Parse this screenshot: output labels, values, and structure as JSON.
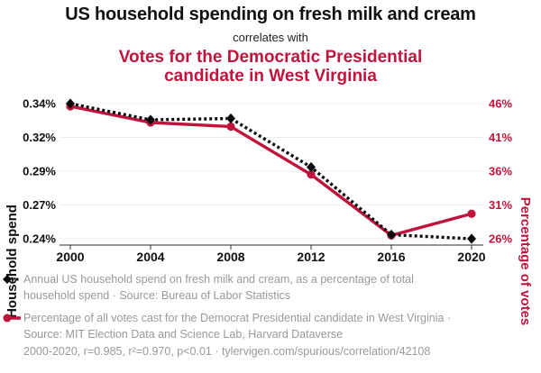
{
  "header": {
    "title": "US household spending on fresh milk and cream",
    "connector": "correlates with",
    "subtitle": "Votes for the Democratic Presidential candidate in West Virginia"
  },
  "colors": {
    "accent_red": "#c0143c",
    "series_black": "#0b0b0b",
    "legend_gray": "#999999",
    "gridline": "#ececec",
    "axis_line": "#2b2b2b"
  },
  "chart_data": {
    "type": "line",
    "title": "US household spending on fresh milk and cream correlates with Votes for the Democratic Presidential candidate in West Virginia",
    "x": [
      2000,
      2004,
      2008,
      2012,
      2016,
      2020
    ],
    "x_tick_labels": [
      "2000",
      "2004",
      "2008",
      "2012",
      "2016",
      "2020"
    ],
    "series": [
      {
        "id": "milk-spend",
        "name": "Annual US household spend on fresh milk and cream, as a percentage of total household spend",
        "axis": "left",
        "values": [
          0.34,
          0.328,
          0.329,
          0.293,
          0.243,
          0.24
        ],
        "unit": "% of total household spend",
        "marker": "diamond",
        "line_style": "dotted",
        "color_key": "series_black"
      },
      {
        "id": "democrat-votes",
        "name": "Percentage of all votes cast for the Democrat Presidential candidate in West Virginia",
        "axis": "right",
        "values": [
          45.6,
          43.2,
          42.6,
          35.5,
          26.5,
          29.7
        ],
        "unit": "% of votes",
        "marker": "circle",
        "line_style": "solid",
        "color_key": "accent_red"
      }
    ],
    "left_axis": {
      "title": "Household spend",
      "tick_labels": [
        "0.34%",
        "0.32%",
        "0.29%",
        "0.27%",
        "0.24%"
      ],
      "tick_values": [
        0.34,
        0.315,
        0.29,
        0.265,
        0.24
      ],
      "range": [
        0.24,
        0.34
      ]
    },
    "right_axis": {
      "title": "Percentage of votes",
      "tick_labels": [
        "46%",
        "41%",
        "36%",
        "31%",
        "26%"
      ],
      "tick_values": [
        46,
        41,
        36,
        31,
        26
      ],
      "range": [
        26,
        46
      ]
    },
    "grid": true,
    "legend_position": "bottom"
  },
  "legend": {
    "items": [
      {
        "text": "Annual US household spend on fresh milk and cream, as a percentage of total household spend · Source: Bureau of Labor Statistics"
      },
      {
        "text": "Percentage of all votes cast for the Democrat Presidential candidate in West Virginia · Source: MIT Election Data and Science Lab, Harvard Dataverse"
      }
    ]
  },
  "footer": {
    "text": "2000-2020, r=0.985, r²=0.970, p<0.01 · tylervigen.com/spurious/correlation/42108"
  }
}
